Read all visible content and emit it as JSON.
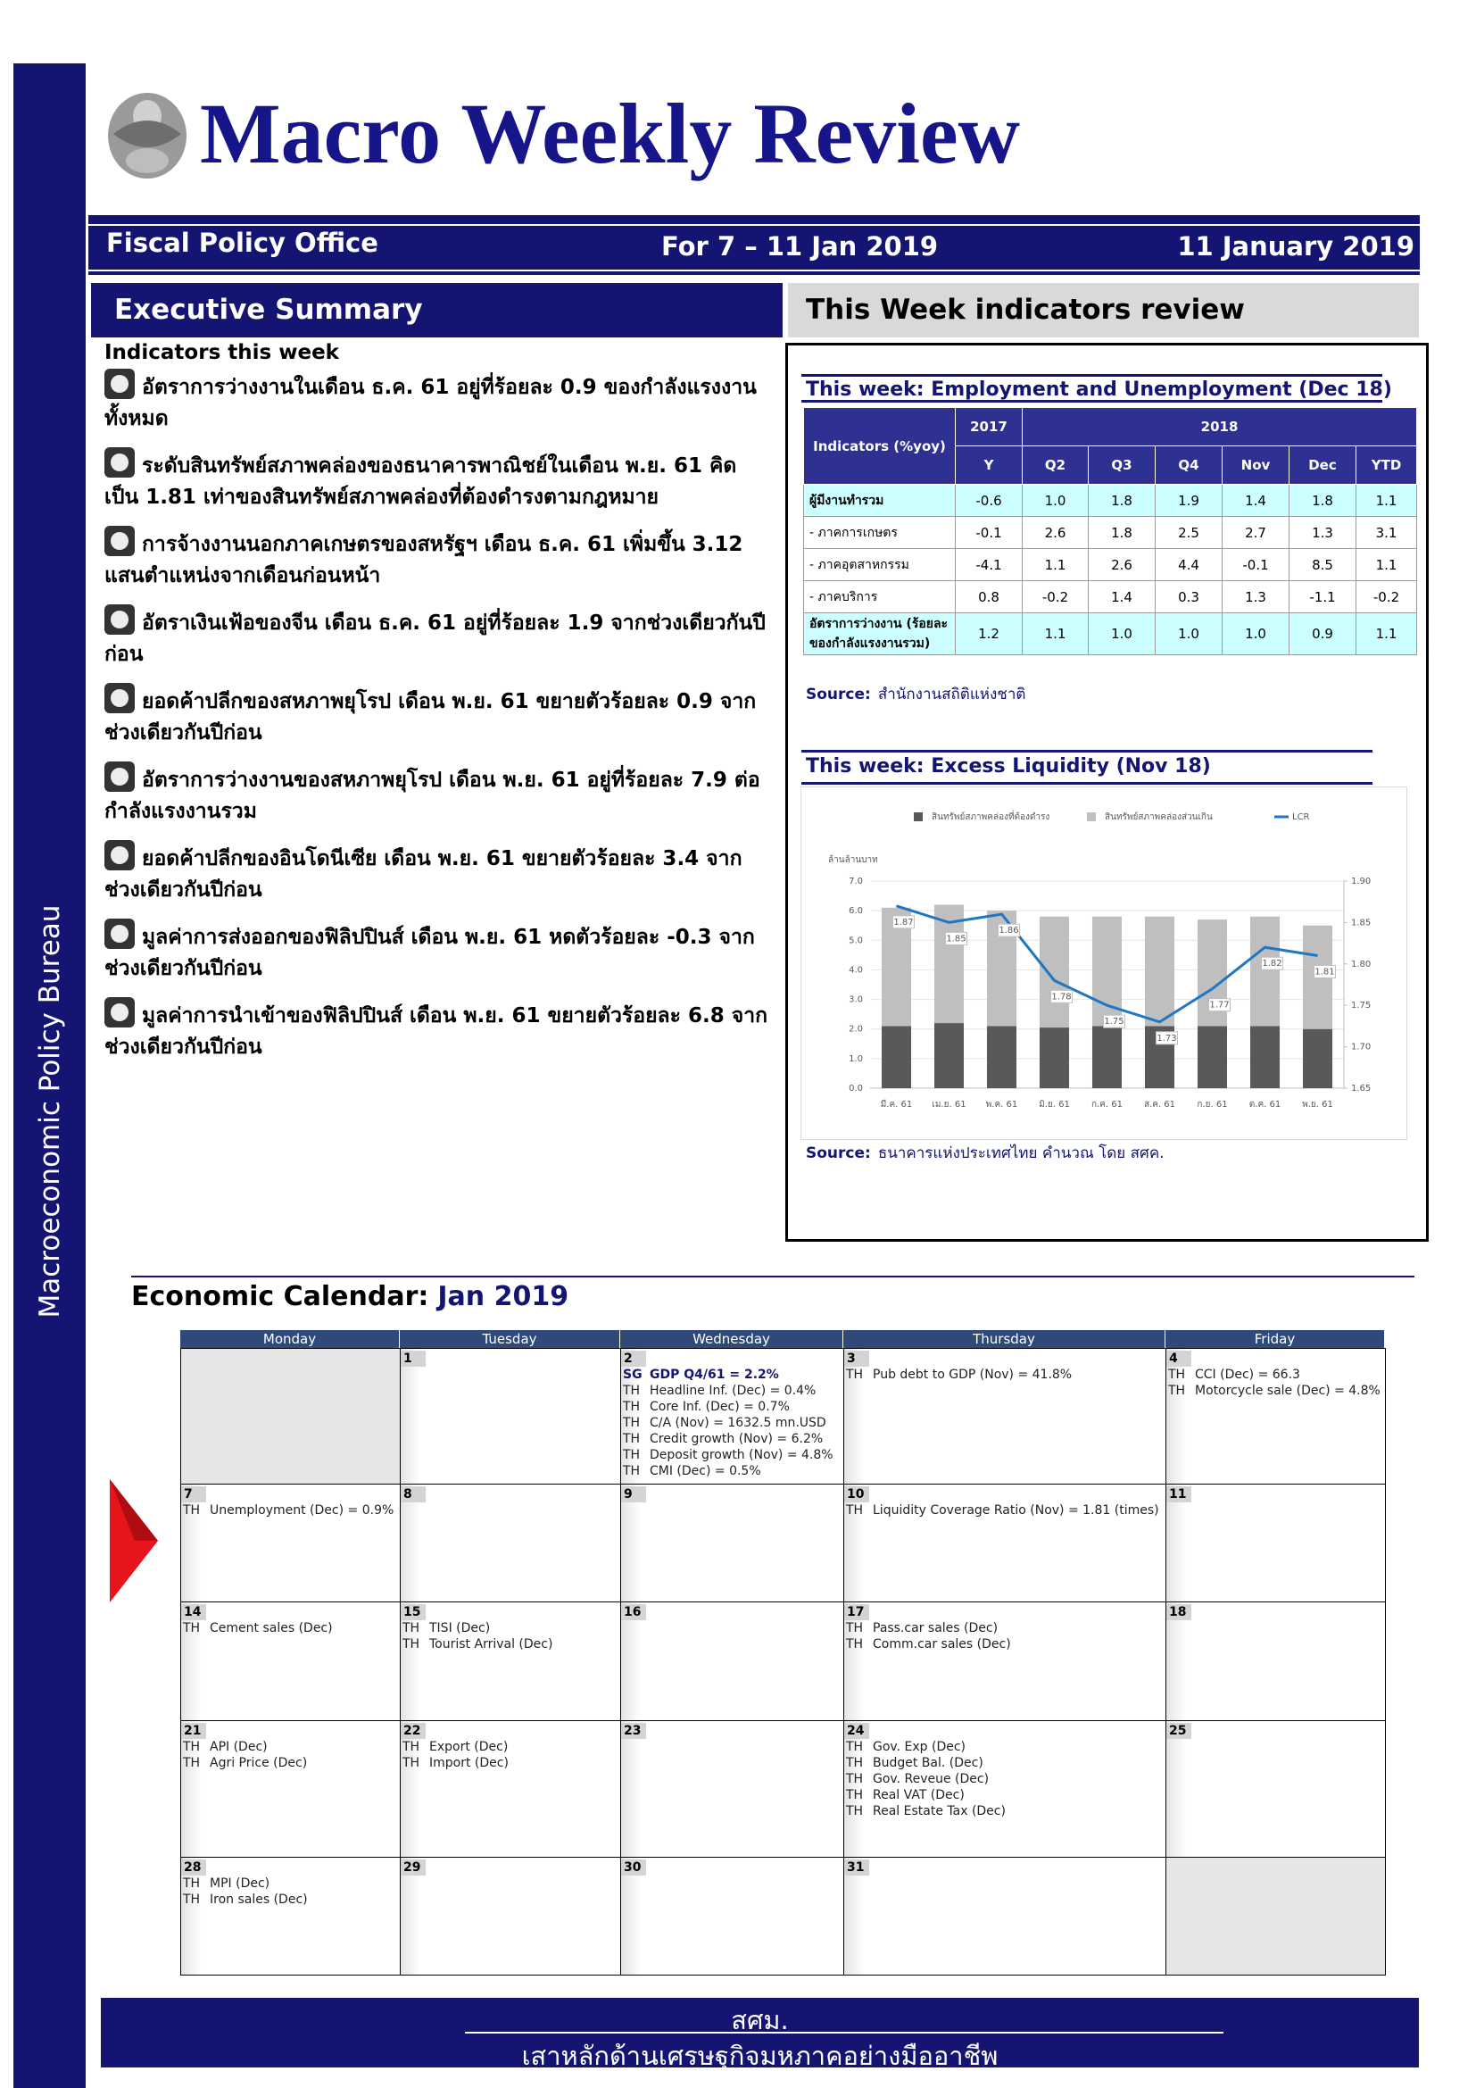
{
  "side_label": "Macroeconomic Policy Bureau",
  "header": {
    "title": "Macro Weekly Review",
    "office": "Fiscal Policy Office",
    "period": "For 7 – 11 Jan 2019",
    "date": "11 January 2019"
  },
  "summary": {
    "heading": "Executive Summary",
    "subheading": "Indicators this week",
    "items": [
      "อัตราการว่างงานในเดือน ธ.ค. 61 อยู่ที่ร้อยละ 0.9 ของกำลังแรงงานทั้งหมด",
      "ระดับสินทรัพย์สภาพคล่องของธนาคารพาณิชย์ในเดือน พ.ย. 61 คิดเป็น 1.81 เท่าของสินทรัพย์สภาพคล่องที่ต้องดำรงตามกฎหมาย",
      "การจ้างงานนอกภาคเกษตรของสหรัฐฯ เดือน ธ.ค. 61 เพิ่มขึ้น 3.12 แสนตำแหน่งจากเดือนก่อนหน้า",
      "อัตราเงินเฟ้อของจีน เดือน ธ.ค. 61 อยู่ที่ร้อยละ 1.9 จากช่วงเดียวกันปีก่อน",
      "ยอดค้าปลีกของสหภาพยุโรป เดือน พ.ย. 61 ขยายตัวร้อยละ 0.9 จากช่วงเดียวกันปีก่อน",
      "อัตราการว่างงานของสหภาพยุโรป เดือน พ.ย. 61 อยู่ที่ร้อยละ 7.9 ต่อกำลังแรงงานรวม",
      "ยอดค้าปลีกของอินโดนีเซีย เดือน พ.ย. 61 ขยายตัวร้อยละ 3.4 จากช่วงเดียวกันปีก่อน",
      "มูลค่าการส่งออกของฟิลิปปินส์ เดือน พ.ย. 61 หดตัวร้อยละ -0.3 จากช่วงเดียวกันปีก่อน",
      "มูลค่าการนำเข้าของฟิลิปปินส์ เดือน พ.ย. 61 ขยายตัวร้อยละ 6.8 จากช่วงเดียวกันปีก่อน"
    ]
  },
  "review": {
    "heading": "This Week indicators review"
  },
  "employment_table": {
    "title": "This week: Employment and Unemployment (Dec 18)",
    "header": {
      "indicators": "Indicators (%yoy)",
      "years": [
        "2017",
        "2018"
      ],
      "columns": [
        "Y",
        "Q2",
        "Q3",
        "Q4",
        "Nov",
        "Dec",
        "YTD"
      ]
    },
    "rows": [
      {
        "label": "ผู้มีงานทำรวม",
        "highlight": true,
        "values": [
          "-0.6",
          "1.0",
          "1.8",
          "1.9",
          "1.4",
          "1.8",
          "1.1"
        ]
      },
      {
        "label": "- ภาคการเกษตร",
        "values": [
          "-0.1",
          "2.6",
          "1.8",
          "2.5",
          "2.7",
          "1.3",
          "3.1"
        ]
      },
      {
        "label": "- ภาคอุตสาหกรรม",
        "values": [
          "-4.1",
          "1.1",
          "2.6",
          "4.4",
          "-0.1",
          "8.5",
          "1.1"
        ]
      },
      {
        "label": "- ภาคบริการ",
        "values": [
          "0.8",
          "-0.2",
          "1.4",
          "0.3",
          "1.3",
          "-1.1",
          "-0.2"
        ]
      },
      {
        "label": "อัตราการว่างงาน (ร้อยละของกำลังแรงงานรวม)",
        "highlight": true,
        "values": [
          "1.2",
          "1.1",
          "1.0",
          "1.0",
          "1.0",
          "0.9",
          "1.1"
        ]
      }
    ],
    "source_label": "Source:",
    "source": "สำนักงานสถิติแห่งชาติ"
  },
  "liquidity_chart": {
    "title": "This week: Excess Liquidity (Nov 18)",
    "chart": {
      "type": "bar",
      "stacked": true,
      "grid": true,
      "legend": "top",
      "y_label": "ล้านล้านบาท",
      "categories": [
        "มี.ค. 61",
        "เม.ย. 61",
        "พ.ค. 61",
        "มิ.ย. 61",
        "ก.ค. 61",
        "ส.ค. 61",
        "ก.ย. 61",
        "ต.ค. 61",
        "พ.ย. 61"
      ],
      "series": [
        {
          "name": "สินทรัพย์สภาพคล่องที่ต้องดำรง",
          "color": "#595959",
          "values": [
            2.1,
            2.2,
            2.1,
            2.05,
            2.1,
            2.1,
            2.1,
            2.1,
            2.0
          ]
        },
        {
          "name": "สินทรัพย์สภาพคล่องส่วนเกิน",
          "color": "#bfbfbf",
          "values": [
            4.0,
            4.0,
            3.9,
            3.75,
            3.7,
            3.7,
            3.6,
            3.7,
            3.5
          ]
        },
        {
          "name": "LCR",
          "type": "line",
          "axis": "y2",
          "data_labels": true,
          "color": "#1f77c4",
          "values": [
            1.87,
            1.85,
            1.86,
            1.78,
            1.75,
            1.73,
            1.77,
            1.82,
            1.81
          ]
        }
      ],
      "ylim": [
        0,
        7
      ],
      "yticks": [
        {
          "value": 0,
          "label": "0.0"
        },
        {
          "value": 1,
          "label": "1.0"
        },
        {
          "value": 2,
          "label": "2.0"
        },
        {
          "value": 3,
          "label": "3.0"
        },
        {
          "value": 4,
          "label": "4.0"
        },
        {
          "value": 5,
          "label": "5.0"
        },
        {
          "value": 6,
          "label": "6.0"
        },
        {
          "value": 7,
          "label": "7.0"
        }
      ],
      "y2lim": [
        1.65,
        1.9
      ],
      "y2ticks": [
        1.65,
        {
          "value": 1.7,
          "label": "1.70"
        },
        1.75,
        {
          "value": 1.8,
          "label": "1.80"
        },
        1.85,
        {
          "value": 1.9,
          "label": "1.90"
        }
      ]
    },
    "source_label": "Source:",
    "source": "ธนาคารแห่งประเทศไทย คำนวณ โดย สศค."
  },
  "calendar": {
    "title": "Economic Calendar:",
    "month": "Jan 2019",
    "weekdays": [
      "Monday",
      "Tuesday",
      "Wednesday",
      "Thursday",
      "Friday"
    ],
    "weeks": [
      [
        null,
        {
          "day": 1
        },
        {
          "day": 2,
          "entries": [
            {
              "country": "SG",
              "text": "GDP Q4/61 = 2.2%",
              "highlight": true
            },
            {
              "country": "TH",
              "text": "Headline Inf. (Dec) = 0.4%"
            },
            {
              "country": "TH",
              "text": "Core Inf. (Dec) = 0.7%"
            },
            {
              "country": "TH",
              "text": "C/A (Nov) = 1632.5 mn.USD"
            },
            {
              "country": "TH",
              "text": "Credit growth (Nov) = 6.2%"
            },
            {
              "country": "TH",
              "text": "Deposit growth (Nov) = 4.8%"
            },
            {
              "country": "TH",
              "text": "CMI (Dec) = 0.5%"
            }
          ]
        },
        {
          "day": 3,
          "entries": [
            {
              "country": "TH",
              "text": "Pub debt to GDP (Nov) = 41.8%"
            }
          ]
        },
        {
          "day": 4,
          "entries": [
            {
              "country": "TH",
              "text": "CCI (Dec) = 66.3"
            },
            {
              "country": "TH",
              "text": "Motorcycle sale (Dec) = 4.8%"
            }
          ]
        }
      ],
      [
        {
          "day": 7,
          "entries": [
            {
              "country": "TH",
              "text": "Unemployment (Dec) = 0.9%"
            }
          ]
        },
        {
          "day": 8
        },
        {
          "day": 9
        },
        {
          "day": 10,
          "entries": [
            {
              "country": "TH",
              "text": "Liquidity Coverage Ratio (Nov) = 1.81 (times)"
            }
          ]
        },
        {
          "day": 11
        }
      ],
      [
        {
          "day": 14,
          "entries": [
            {
              "country": "TH",
              "text": "Cement sales (Dec)"
            }
          ]
        },
        {
          "day": 15,
          "entries": [
            {
              "country": "TH",
              "text": "TISI (Dec)"
            },
            {
              "country": "TH",
              "text": "Tourist Arrival (Dec)"
            }
          ]
        },
        {
          "day": 16
        },
        {
          "day": 17,
          "entries": [
            {
              "country": "TH",
              "text": "Pass.car sales (Dec)"
            },
            {
              "country": "TH",
              "text": "Comm.car sales (Dec)"
            }
          ]
        },
        {
          "day": 18
        }
      ],
      [
        {
          "day": 21,
          "entries": [
            {
              "country": "TH",
              "text": "API (Dec)"
            },
            {
              "country": "TH",
              "text": "Agri Price (Dec)"
            }
          ]
        },
        {
          "day": 22,
          "entries": [
            {
              "country": "TH",
              "text": "Export (Dec)"
            },
            {
              "country": "TH",
              "text": "Import (Dec)"
            }
          ]
        },
        {
          "day": 23
        },
        {
          "day": 24,
          "entries": [
            {
              "country": "TH",
              "text": "Gov. Exp (Dec)"
            },
            {
              "country": "TH",
              "text": "Budget Bal. (Dec)"
            },
            {
              "country": "TH",
              "text": "Gov. Reveue (Dec)"
            },
            {
              "country": "TH",
              "text": "Real VAT (Dec)"
            },
            {
              "country": "TH",
              "text": "Real Estate Tax (Dec)"
            }
          ]
        },
        {
          "day": 25
        }
      ],
      [
        {
          "day": 28,
          "entries": [
            {
              "country": "TH",
              "text": "MPI (Dec)"
            },
            {
              "country": "TH",
              "text": "Iron sales (Dec)"
            }
          ]
        },
        {
          "day": 29
        },
        {
          "day": 30
        },
        {
          "day": 31
        },
        null
      ]
    ]
  },
  "footer": {
    "org": "สศม.",
    "slogan": "เสาหลักด้านเศรษฐกิจมหภาคอย่างมืออาชีพ"
  }
}
